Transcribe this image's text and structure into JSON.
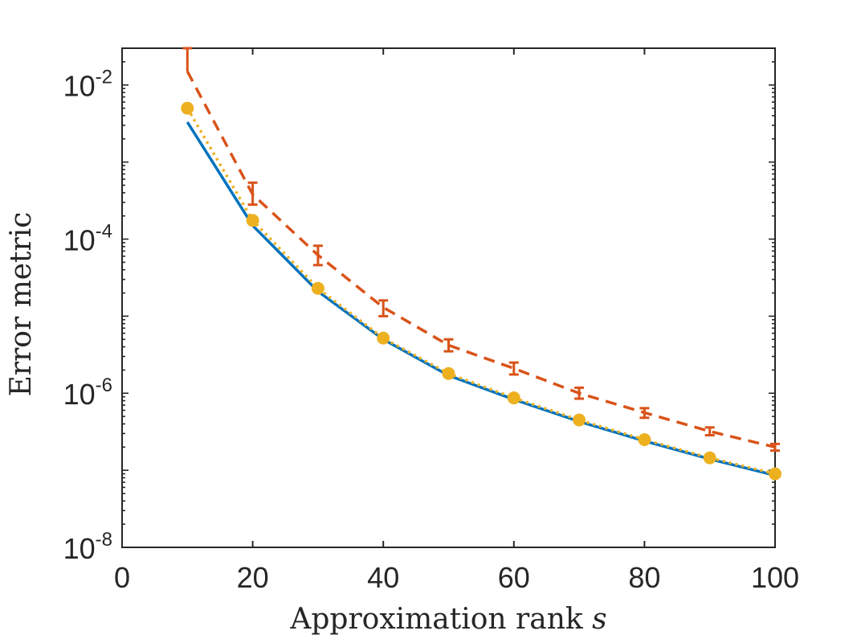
{
  "chart_data": {
    "type": "line",
    "xlabel": "Approximation rank",
    "xlabel_symbol": "s",
    "ylabel": "Error metric",
    "xlim": [
      0,
      100
    ],
    "ylim": [
      1e-08,
      0.03
    ],
    "yscale": "log",
    "x_ticks": [
      0,
      20,
      40,
      60,
      80,
      100
    ],
    "y_ticks": [
      {
        "value": 1e-08,
        "base": "10",
        "exp": "-8"
      },
      {
        "value": 1e-06,
        "base": "10",
        "exp": "-6"
      },
      {
        "value": 0.0001,
        "base": "10",
        "exp": "-4"
      },
      {
        "value": 0.01,
        "base": "10",
        "exp": "-2"
      }
    ],
    "grid": false,
    "legend": "none",
    "x": [
      10,
      20,
      30,
      40,
      50,
      60,
      70,
      80,
      90,
      100
    ],
    "series": [
      {
        "color": "#0072BD",
        "style": "solid",
        "values": [
          0.0033,
          0.00015,
          2.1e-05,
          5e-06,
          1.7e-06,
          8.3e-07,
          4.3e-07,
          2.4e-07,
          1.4e-07,
          8.6e-08
        ]
      },
      {
        "color": "#D95319",
        "style": "dashed",
        "errorbars": true,
        "values": [
          0.015,
          0.00038,
          6.2e-05,
          1.3e-05,
          4.2e-06,
          2.1e-06,
          1e-06,
          5.6e-07,
          3.2e-07,
          2e-07
        ],
        "lower": [
          0.015,
          0.00028,
          4.6e-05,
          1e-05,
          3.5e-06,
          1.75e-06,
          8.5e-07,
          4.8e-07,
          2.85e-07,
          1.8e-07
        ],
        "upper": [
          0.03,
          0.00054,
          8.2e-05,
          1.6e-05,
          5e-06,
          2.5e-06,
          1.18e-06,
          6.4e-07,
          3.6e-07,
          2.2e-07
        ]
      },
      {
        "color": "#EDB120",
        "style": "dotted",
        "markers": true,
        "values": [
          0.005,
          0.000175,
          2.3e-05,
          5.2e-06,
          1.8e-06,
          8.7e-07,
          4.5e-07,
          2.5e-07,
          1.45e-07,
          9e-08
        ]
      }
    ]
  }
}
